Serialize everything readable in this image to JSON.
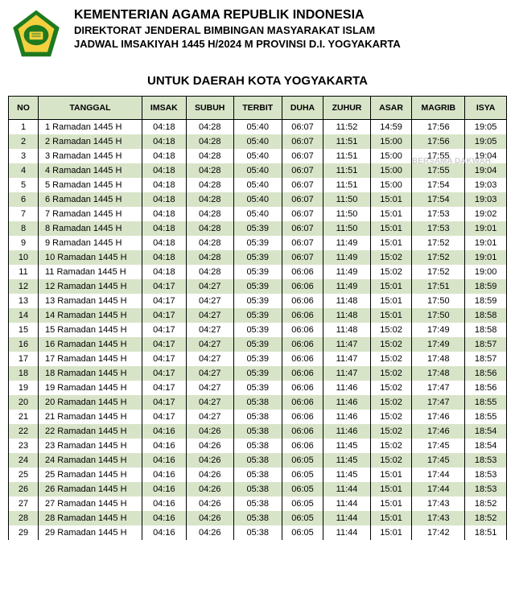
{
  "header": {
    "title_main": "KEMENTERIAN AGAMA REPUBLIK INDONESIA",
    "title_sub1": "DIREKTORAT JENDERAL BIMBINGAN MASYARAKAT ISLAM",
    "title_sub2": "JADWAL IMSAKIYAH 1445 H/2024 M PROVINSI D.I. YOGYAKARTA",
    "region": "UNTUK DAERAH KOTA YOGYAKARTA"
  },
  "logo": {
    "border_color": "#1e7a1e",
    "fill_color": "#f4d03f",
    "inner_color": "#1e7a1e"
  },
  "watermark": "BERSAMA DAKWAH",
  "table": {
    "columns": [
      "NO",
      "TANGGAL",
      "IMSAK",
      "SUBUH",
      "TERBIT",
      "DUHA",
      "ZUHUR",
      "ASAR",
      "MAGRIB",
      "ISYA"
    ],
    "header_bg": "#d8e4c8",
    "even_row_bg": "#d8e4c8",
    "odd_row_bg": "#ffffff",
    "border_color": "#000000",
    "font_size": 11,
    "rows": [
      [
        "1",
        "1 Ramadan 1445 H",
        "04:18",
        "04:28",
        "05:40",
        "06:07",
        "11:52",
        "14:59",
        "17:56",
        "19:05"
      ],
      [
        "2",
        "2 Ramadan 1445 H",
        "04:18",
        "04:28",
        "05:40",
        "06:07",
        "11:51",
        "15:00",
        "17:56",
        "19:05"
      ],
      [
        "3",
        "3 Ramadan 1445 H",
        "04:18",
        "04:28",
        "05:40",
        "06:07",
        "11:51",
        "15:00",
        "17:55",
        "19:04"
      ],
      [
        "4",
        "4 Ramadan 1445 H",
        "04:18",
        "04:28",
        "05:40",
        "06:07",
        "11:51",
        "15:00",
        "17:55",
        "19:04"
      ],
      [
        "5",
        "5 Ramadan 1445 H",
        "04:18",
        "04:28",
        "05:40",
        "06:07",
        "11:51",
        "15:00",
        "17:54",
        "19:03"
      ],
      [
        "6",
        "6 Ramadan 1445 H",
        "04:18",
        "04:28",
        "05:40",
        "06:07",
        "11:50",
        "15:01",
        "17:54",
        "19:03"
      ],
      [
        "7",
        "7 Ramadan 1445 H",
        "04:18",
        "04:28",
        "05:40",
        "06:07",
        "11:50",
        "15:01",
        "17:53",
        "19:02"
      ],
      [
        "8",
        "8 Ramadan 1445 H",
        "04:18",
        "04:28",
        "05:39",
        "06:07",
        "11:50",
        "15:01",
        "17:53",
        "19:01"
      ],
      [
        "9",
        "9 Ramadan 1445 H",
        "04:18",
        "04:28",
        "05:39",
        "06:07",
        "11:49",
        "15:01",
        "17:52",
        "19:01"
      ],
      [
        "10",
        "10 Ramadan 1445 H",
        "04:18",
        "04:28",
        "05:39",
        "06:07",
        "11:49",
        "15:02",
        "17:52",
        "19:01"
      ],
      [
        "11",
        "11 Ramadan 1445 H",
        "04:18",
        "04:28",
        "05:39",
        "06:06",
        "11:49",
        "15:02",
        "17:52",
        "19:00"
      ],
      [
        "12",
        "12 Ramadan 1445 H",
        "04:17",
        "04:27",
        "05:39",
        "06:06",
        "11:49",
        "15:01",
        "17:51",
        "18:59"
      ],
      [
        "13",
        "13 Ramadan 1445 H",
        "04:17",
        "04:27",
        "05:39",
        "06:06",
        "11:48",
        "15:01",
        "17:50",
        "18:59"
      ],
      [
        "14",
        "14 Ramadan 1445 H",
        "04:17",
        "04:27",
        "05:39",
        "06:06",
        "11:48",
        "15:01",
        "17:50",
        "18:58"
      ],
      [
        "15",
        "15 Ramadan 1445 H",
        "04:17",
        "04:27",
        "05:39",
        "06:06",
        "11:48",
        "15:02",
        "17:49",
        "18:58"
      ],
      [
        "16",
        "16 Ramadan 1445 H",
        "04:17",
        "04:27",
        "05:39",
        "06:06",
        "11:47",
        "15:02",
        "17:49",
        "18:57"
      ],
      [
        "17",
        "17 Ramadan 1445 H",
        "04:17",
        "04:27",
        "05:39",
        "06:06",
        "11:47",
        "15:02",
        "17:48",
        "18:57"
      ],
      [
        "18",
        "18 Ramadan 1445 H",
        "04:17",
        "04:27",
        "05:39",
        "06:06",
        "11:47",
        "15:02",
        "17:48",
        "18:56"
      ],
      [
        "19",
        "19 Ramadan 1445 H",
        "04:17",
        "04:27",
        "05:39",
        "06:06",
        "11:46",
        "15:02",
        "17:47",
        "18:56"
      ],
      [
        "20",
        "20 Ramadan 1445 H",
        "04:17",
        "04:27",
        "05:38",
        "06:06",
        "11:46",
        "15:02",
        "17:47",
        "18:55"
      ],
      [
        "21",
        "21 Ramadan 1445 H",
        "04:17",
        "04:27",
        "05:38",
        "06:06",
        "11:46",
        "15:02",
        "17:46",
        "18:55"
      ],
      [
        "22",
        "22 Ramadan 1445 H",
        "04:16",
        "04:26",
        "05:38",
        "06:06",
        "11:46",
        "15:02",
        "17:46",
        "18:54"
      ],
      [
        "23",
        "23 Ramadan 1445 H",
        "04:16",
        "04:26",
        "05:38",
        "06:06",
        "11:45",
        "15:02",
        "17:45",
        "18:54"
      ],
      [
        "24",
        "24 Ramadan 1445 H",
        "04:16",
        "04:26",
        "05:38",
        "06:05",
        "11:45",
        "15:02",
        "17:45",
        "18:53"
      ],
      [
        "25",
        "25 Ramadan 1445 H",
        "04:16",
        "04:26",
        "05:38",
        "06:05",
        "11:45",
        "15:01",
        "17:44",
        "18:53"
      ],
      [
        "26",
        "26 Ramadan 1445 H",
        "04:16",
        "04:26",
        "05:38",
        "06:05",
        "11:44",
        "15:01",
        "17:44",
        "18:53"
      ],
      [
        "27",
        "27 Ramadan 1445 H",
        "04:16",
        "04:26",
        "05:38",
        "06:05",
        "11:44",
        "15:01",
        "17:43",
        "18:52"
      ],
      [
        "28",
        "28 Ramadan 1445 H",
        "04:16",
        "04:26",
        "05:38",
        "06:05",
        "11:44",
        "15:01",
        "17:43",
        "18:52"
      ],
      [
        "29",
        "29 Ramadan 1445 H",
        "04:16",
        "04:26",
        "05:38",
        "06:05",
        "11:44",
        "15:01",
        "17:42",
        "18:51"
      ]
    ]
  }
}
